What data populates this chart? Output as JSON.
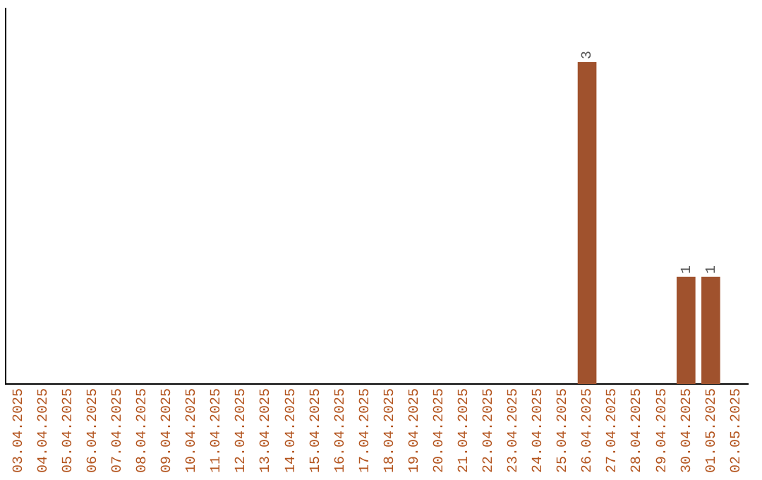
{
  "chart_data": {
    "type": "bar",
    "categories": [
      "03.04.2025",
      "04.04.2025",
      "05.04.2025",
      "06.04.2025",
      "07.04.2025",
      "08.04.2025",
      "09.04.2025",
      "10.04.2025",
      "11.04.2025",
      "12.04.2025",
      "13.04.2025",
      "14.04.2025",
      "15.04.2025",
      "16.04.2025",
      "17.04.2025",
      "18.04.2025",
      "19.04.2025",
      "20.04.2025",
      "21.04.2025",
      "22.04.2025",
      "23.04.2025",
      "24.04.2025",
      "25.04.2025",
      "26.04.2025",
      "27.04.2025",
      "28.04.2025",
      "29.04.2025",
      "30.04.2025",
      "01.05.2025",
      "02.05.2025"
    ],
    "values": [
      null,
      null,
      null,
      null,
      null,
      null,
      null,
      null,
      null,
      null,
      null,
      null,
      null,
      null,
      null,
      null,
      null,
      null,
      null,
      null,
      null,
      null,
      null,
      3,
      null,
      null,
      null,
      1,
      1,
      null
    ],
    "value_labels": [
      null,
      null,
      null,
      null,
      null,
      null,
      null,
      null,
      null,
      null,
      null,
      null,
      null,
      null,
      null,
      null,
      null,
      null,
      null,
      null,
      null,
      null,
      null,
      "3",
      null,
      null,
      null,
      "1",
      "1",
      null
    ],
    "color": "#a0522d",
    "grid": false,
    "legend": false
  }
}
